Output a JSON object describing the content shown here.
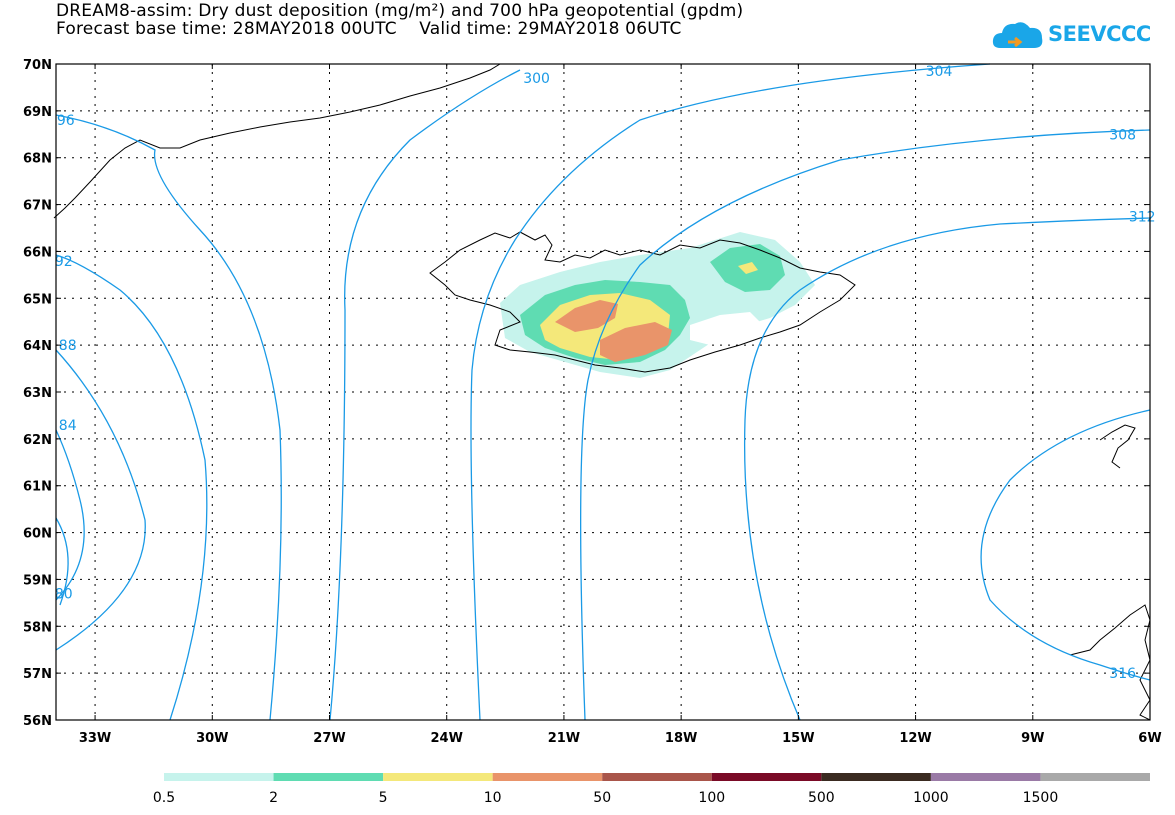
{
  "title": {
    "line1": "DREAM8-assim: Dry dust deposition (mg/m²) and 700 hPa geopotential (gpdm)",
    "line2": "Forecast base time: 28MAY2018 00UTC    Valid time: 29MAY2018 06UTC"
  },
  "logo": {
    "text": "SEEVCCC",
    "color": "#1aa6e8"
  },
  "map": {
    "lat_labels": [
      "70N",
      "69N",
      "68N",
      "67N",
      "66N",
      "65N",
      "64N",
      "63N",
      "62N",
      "61N",
      "60N",
      "59N",
      "58N",
      "57N",
      "56N"
    ],
    "lon_labels": [
      "33W",
      "30W",
      "27W",
      "24W",
      "21W",
      "18W",
      "15W",
      "12W",
      "9W",
      "6W"
    ],
    "lat_values": [
      70,
      69,
      68,
      67,
      66,
      65,
      64,
      63,
      62,
      61,
      60,
      59,
      58,
      57,
      56
    ],
    "lon_values": [
      -33,
      -30,
      -27,
      -24,
      -21,
      -18,
      -15,
      -12,
      -9,
      -6
    ],
    "lat_range": [
      56,
      70
    ],
    "lon_range": [
      -34,
      -6
    ],
    "contour_color": "#1a9ae6",
    "coast_color": "#000000",
    "grid": "dotted",
    "contour_labels": [
      {
        "text": "300",
        "lat": 69.7,
        "lon": -21.7
      },
      {
        "text": "304",
        "lat": 69.85,
        "lon": -11.4
      },
      {
        "text": "308",
        "lat": 68.5,
        "lon": -6.7
      },
      {
        "text": "312",
        "lat": 66.75,
        "lon": -6.2
      },
      {
        "text": "316",
        "lat": 57.0,
        "lon": -6.7
      },
      {
        "text": "96",
        "lat": 68.8,
        "lon": -33.75
      },
      {
        "text": "92",
        "lat": 65.8,
        "lon": -33.8
      },
      {
        "text": "88",
        "lat": 64.0,
        "lon": -33.7
      },
      {
        "text": "84",
        "lat": 62.3,
        "lon": -33.7
      },
      {
        "text": "80",
        "lat": 58.7,
        "lon": -33.8
      }
    ]
  },
  "legend": {
    "bins": [
      {
        "color": "#c6f3ec",
        "label": "0.5"
      },
      {
        "color": "#5fdcb2",
        "label": "2"
      },
      {
        "color": "#f4e87a",
        "label": "5"
      },
      {
        "color": "#e9946a",
        "label": "10"
      },
      {
        "color": "#a9554a",
        "label": "50"
      },
      {
        "color": "#7a0a26",
        "label": "100"
      },
      {
        "color": "#3a2a20",
        "label": "500"
      },
      {
        "color": "#9a7aa6",
        "label": "1000"
      },
      {
        "color": "#a9a9a9",
        "label": "1500"
      }
    ]
  }
}
